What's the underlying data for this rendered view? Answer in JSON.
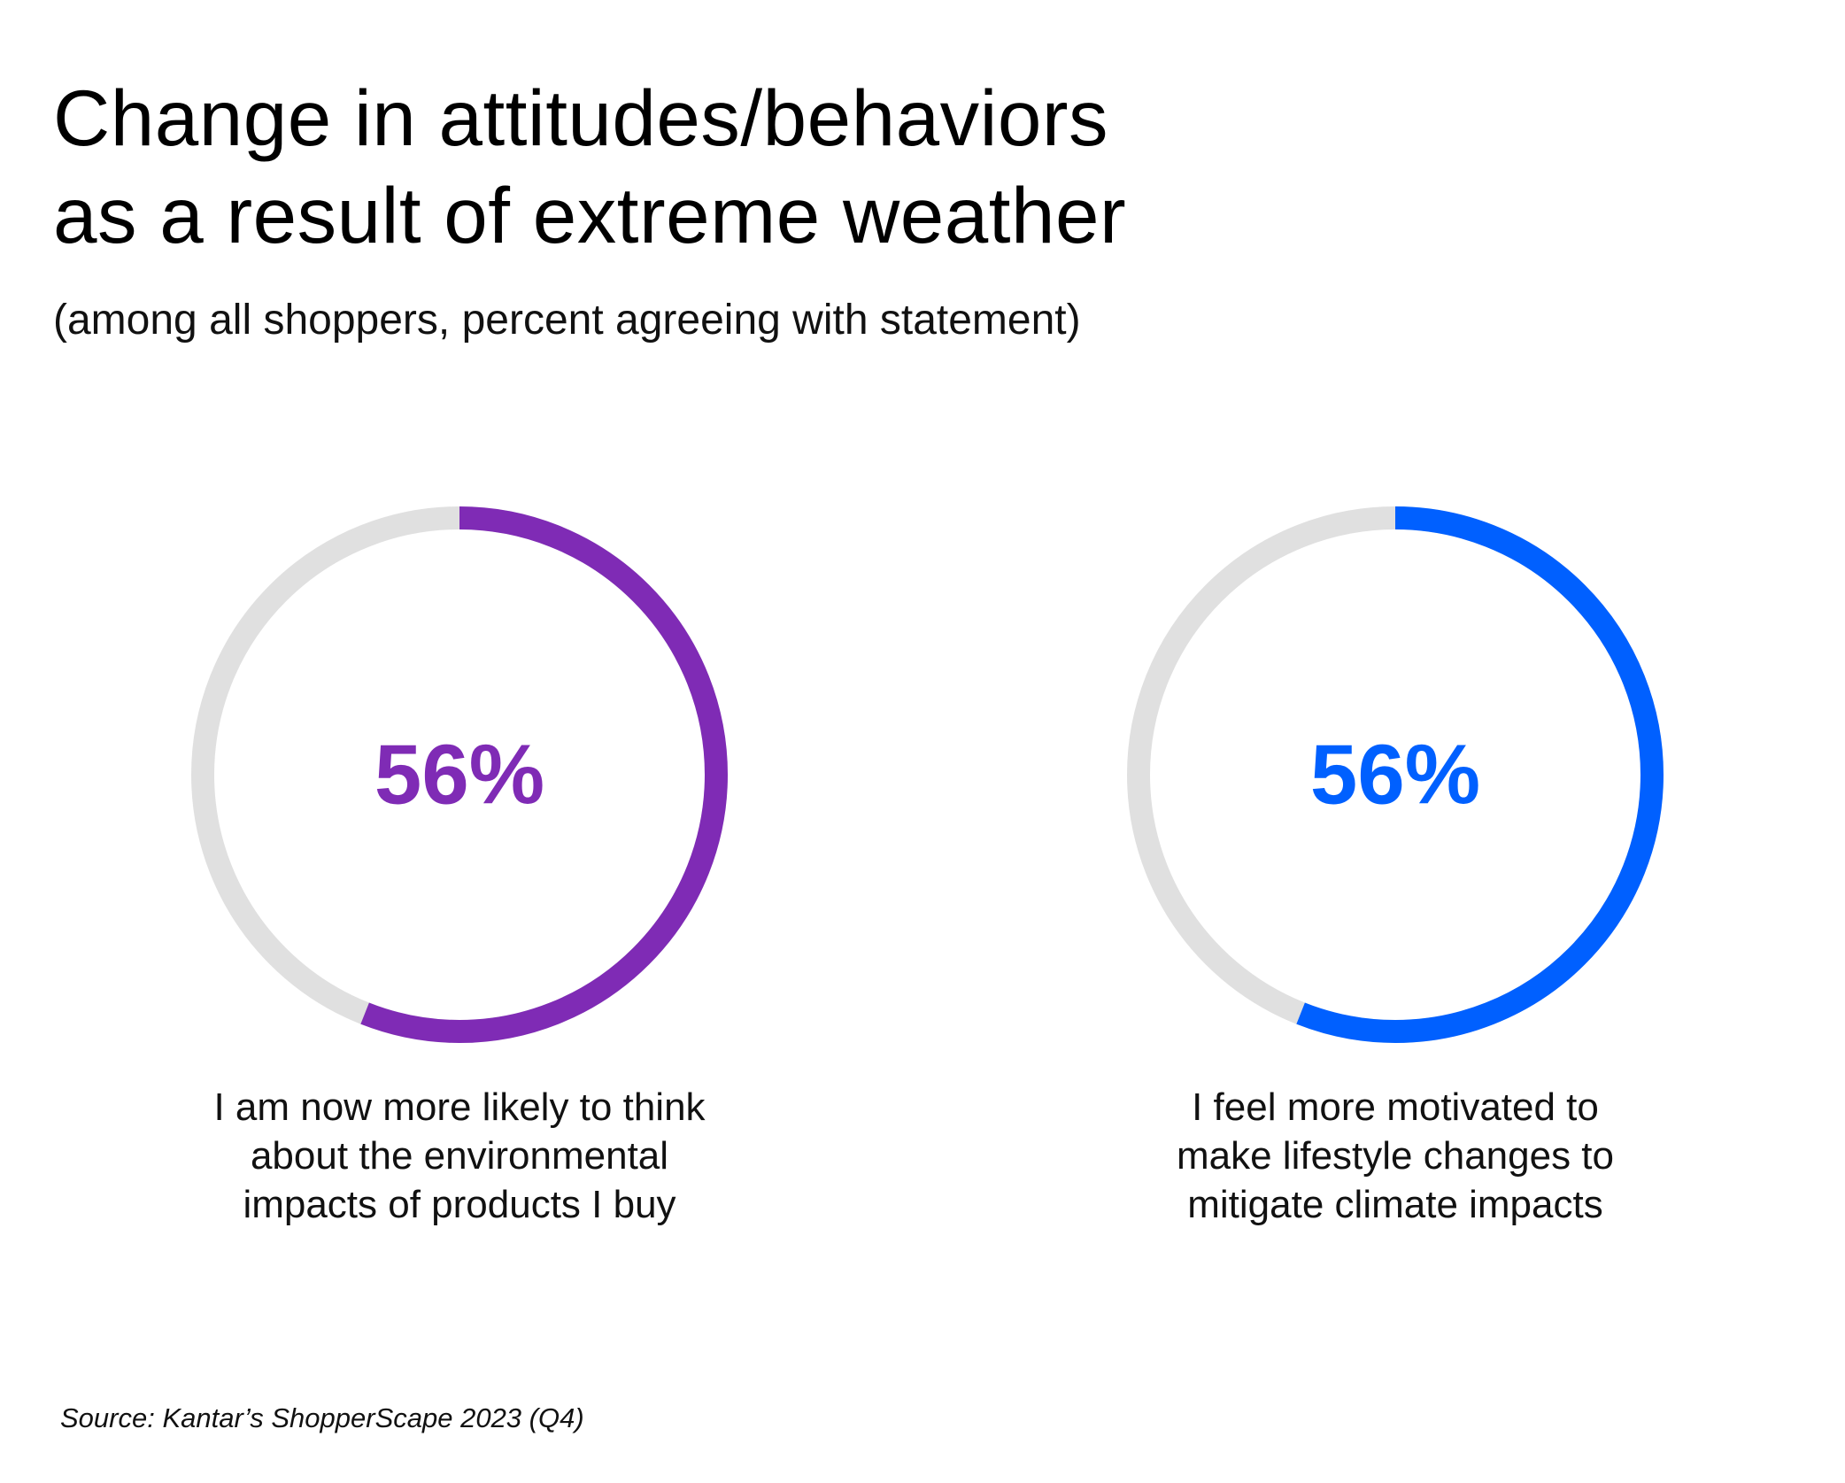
{
  "chart_data": {
    "type": "pie",
    "title": "Change in attitudes/behaviors as a result of extreme weather",
    "title_lines": [
      "Change in attitudes/behaviors",
      "as a result of extreme weather"
    ],
    "subtitle": "(among all shoppers, percent agreeing with statement)",
    "source": "Source: Kantar’s ShopperScape 2023 (Q4)",
    "track_color": "#E0E0E0",
    "items": [
      {
        "value": 56,
        "label": "56%",
        "color": "#7F2BB5",
        "caption_lines": [
          "I am now more likely to think",
          "about the environmental",
          "impacts of products I buy"
        ]
      },
      {
        "value": 56,
        "label": "56%",
        "color": "#0060FF",
        "caption_lines": [
          "I feel more motivated to",
          "make lifestyle changes to",
          "mitigate climate impacts"
        ]
      }
    ]
  }
}
